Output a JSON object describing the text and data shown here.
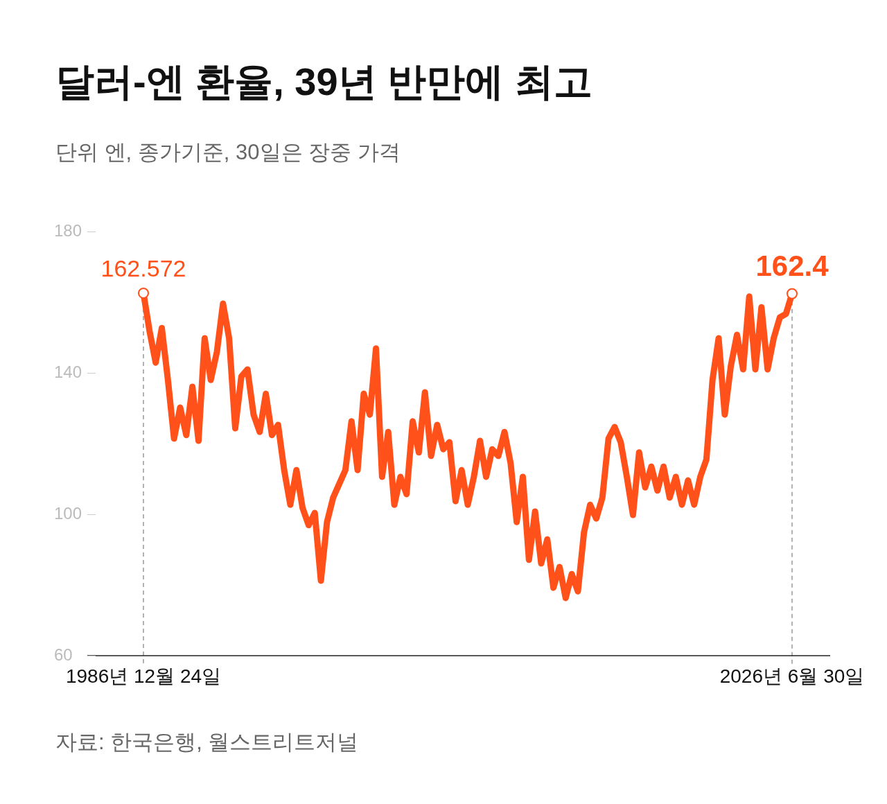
{
  "chart_data": {
    "type": "line",
    "title": "달러-엔 환율, 39년 반만에 최고",
    "subtitle": "단위 엔, 종가기준, 30일은 장중 가격",
    "categories": [
      "1986년 12월 24일",
      null,
      null,
      null,
      null,
      null,
      null,
      null,
      null,
      null,
      null,
      null,
      null,
      null,
      null,
      null,
      null,
      null,
      null,
      null,
      null,
      null,
      null,
      null,
      null,
      null,
      null,
      null,
      null,
      null,
      null,
      null,
      null,
      null,
      null,
      null,
      null,
      null,
      null,
      null,
      null,
      null,
      null,
      null,
      null,
      null,
      null,
      null,
      null,
      null,
      null,
      null,
      null,
      null,
      null,
      null,
      null,
      null,
      null,
      null,
      null,
      null,
      null,
      null,
      null,
      null,
      null,
      null,
      null,
      null,
      null,
      null,
      null,
      null,
      null,
      null,
      null,
      null,
      null,
      null,
      null,
      null,
      null,
      null,
      null,
      null,
      null,
      null,
      null,
      null,
      null,
      null,
      null,
      null,
      null,
      null,
      null,
      null,
      null,
      null,
      null,
      null,
      null,
      null,
      null,
      null,
      "2026년 6월 30일"
    ],
    "series": [
      {
        "color": "#ff5119",
        "values": [
          162.572,
          151.8,
          142.9,
          152.7,
          138.0,
          121.4,
          130.2,
          122.4,
          136.1,
          120.8,
          149.8,
          138.0,
          145.9,
          159.6,
          149.8,
          124.3,
          139.0,
          141.0,
          128.2,
          123.3,
          134.1,
          122.4,
          125.3,
          112.5,
          102.7,
          112.5,
          101.8,
          96.9,
          100.4,
          81.2,
          97.8,
          104.7,
          108.6,
          112.5,
          126.3,
          112.5,
          134.1,
          128.2,
          146.9,
          110.6,
          123.3,
          102.7,
          110.6,
          105.7,
          126.3,
          117.5,
          134.5,
          116.5,
          125.3,
          118.4,
          120.4,
          103.7,
          112.5,
          102.7,
          110.6,
          120.8,
          110.6,
          118.4,
          116.5,
          123.3,
          114.5,
          97.8,
          110.6,
          87.1,
          100.8,
          86.1,
          92.9,
          79.2,
          85.1,
          76.3,
          83.1,
          78.2,
          94.9,
          102.7,
          98.8,
          104.7,
          121.4,
          124.7,
          120.4,
          110.6,
          99.8,
          117.5,
          107.6,
          113.5,
          106.7,
          113.5,
          104.7,
          110.6,
          102.7,
          109.6,
          102.7,
          110.6,
          115.5,
          138.0,
          149.8,
          128.2,
          142.0,
          150.8,
          141.0,
          161.6,
          141.0,
          158.6,
          141.0,
          149.8,
          155.7,
          156.7,
          162.4
        ]
      }
    ],
    "ylim": [
      60,
      180
    ],
    "yticks": [
      60,
      100,
      140,
      180
    ],
    "line_style": "solid",
    "ref_lines": [
      {
        "axis": "x",
        "value": "1986년 12월 24일",
        "color": "#999999",
        "line_style": "dashed"
      },
      {
        "axis": "x",
        "value": "2026년 6월 30일",
        "color": "#999999",
        "line_style": "dashed"
      }
    ],
    "annotations": [
      {
        "text": "162.572",
        "x": "1986년 12월 24일",
        "y": 162.572
      },
      {
        "text": "162.4",
        "x": "2026년 6월 30일",
        "y": 162.4
      },
      "자료: 한국은행, 월스트리트저널"
    ]
  }
}
